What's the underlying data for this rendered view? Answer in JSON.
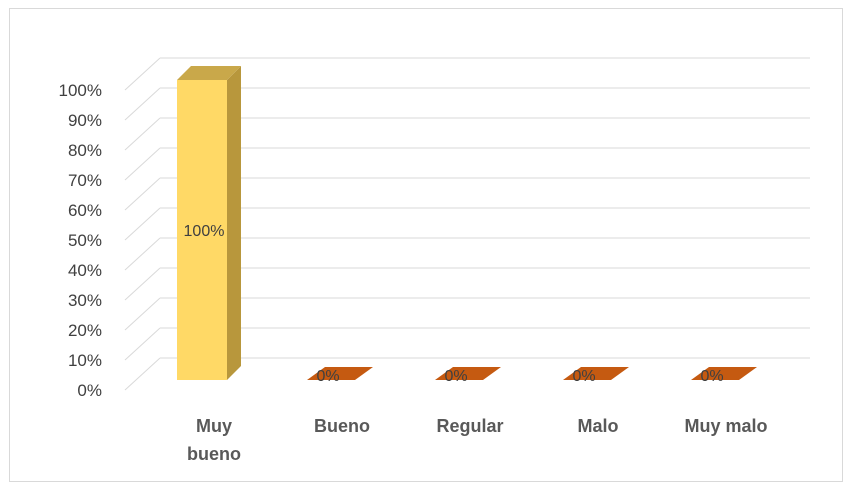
{
  "chart_data": {
    "type": "bar",
    "style": "3d-column",
    "categories": [
      "Muy bueno",
      "Bueno",
      "Regular",
      "Malo",
      "Muy malo"
    ],
    "category_lines": [
      [
        "Muy",
        "bueno"
      ],
      [
        "Bueno"
      ],
      [
        "Regular"
      ],
      [
        "Malo"
      ],
      [
        "Muy malo"
      ]
    ],
    "values": [
      100,
      0,
      0,
      0,
      0
    ],
    "data_labels": [
      "100%",
      "0%",
      "0%",
      "0%",
      "0%"
    ],
    "yticks": [
      "0%",
      "10%",
      "20%",
      "30%",
      "40%",
      "50%",
      "60%",
      "70%",
      "80%",
      "90%",
      "100%"
    ],
    "ylim": [
      0,
      100
    ],
    "grid": true,
    "legend": "none",
    "colors": {
      "highlight_front": "#FFD966",
      "highlight_side": "#B8973C",
      "highlight_top": "#C9A84A",
      "zero_floor": "#C55A11",
      "grid": "#d9d9d9"
    }
  }
}
